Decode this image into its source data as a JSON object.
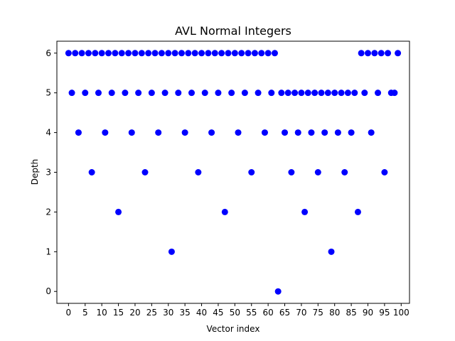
{
  "chart_data": {
    "type": "scatter",
    "title": "AVL Normal Integers",
    "xlabel": "Vector index",
    "ylabel": "Depth",
    "xlim": [
      -3.5,
      102.5
    ],
    "ylim": [
      -0.3,
      6.3
    ],
    "grid": false,
    "marker_color": "#0000ff",
    "x_ticks": [
      0,
      5,
      10,
      15,
      20,
      25,
      30,
      35,
      40,
      45,
      50,
      55,
      60,
      65,
      70,
      75,
      80,
      85,
      90,
      95,
      100
    ],
    "x_tick_labels": [
      "0",
      "5",
      "10",
      "15",
      "20",
      "25",
      "30",
      "35",
      "40",
      "45",
      "50",
      "55",
      "60",
      "65",
      "70",
      "75",
      "80",
      "85",
      "90",
      "95",
      "100"
    ],
    "y_ticks": [
      0,
      1,
      2,
      3,
      4,
      5,
      6
    ],
    "y_tick_labels": [
      "0",
      "1",
      "2",
      "3",
      "4",
      "5",
      "6"
    ],
    "x": [
      0,
      1,
      2,
      3,
      4,
      5,
      6,
      7,
      8,
      9,
      10,
      11,
      12,
      13,
      14,
      15,
      16,
      17,
      18,
      19,
      20,
      21,
      22,
      23,
      24,
      25,
      26,
      27,
      28,
      29,
      30,
      31,
      32,
      33,
      34,
      35,
      36,
      37,
      38,
      39,
      40,
      41,
      42,
      43,
      44,
      45,
      46,
      47,
      48,
      49,
      50,
      51,
      52,
      53,
      54,
      55,
      56,
      57,
      58,
      59,
      60,
      61,
      62,
      63,
      64,
      65,
      66,
      67,
      68,
      69,
      70,
      71,
      72,
      73,
      74,
      75,
      76,
      77,
      78,
      79,
      80,
      81,
      82,
      83,
      84,
      85,
      86,
      87,
      88,
      89,
      90,
      91,
      92,
      93,
      94,
      95,
      96,
      97,
      98,
      99
    ],
    "y": [
      6,
      5,
      6,
      4,
      6,
      5,
      6,
      3,
      6,
      5,
      6,
      4,
      6,
      5,
      6,
      2,
      6,
      5,
      6,
      4,
      6,
      5,
      6,
      3,
      6,
      5,
      6,
      4,
      6,
      5,
      6,
      1,
      6,
      5,
      6,
      4,
      6,
      5,
      6,
      3,
      6,
      5,
      6,
      4,
      6,
      5,
      6,
      2,
      6,
      5,
      6,
      4,
      6,
      5,
      6,
      3,
      6,
      5,
      6,
      4,
      6,
      5,
      6,
      0,
      5,
      4,
      5,
      3,
      5,
      4,
      5,
      2,
      5,
      4,
      5,
      3,
      5,
      4,
      5,
      1,
      5,
      4,
      5,
      3,
      5,
      4,
      5,
      2,
      6,
      5,
      6,
      4,
      6,
      5,
      6,
      3,
      6,
      5,
      5,
      6
    ]
  }
}
